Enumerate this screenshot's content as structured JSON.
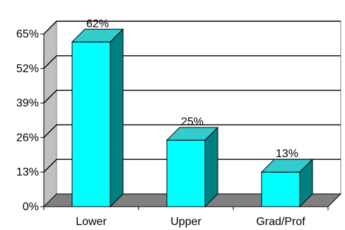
{
  "chart_data": {
    "type": "bar",
    "title": "",
    "xlabel": "",
    "ylabel": "",
    "categories": [
      "Lower",
      "Upper",
      "Grad/Prof"
    ],
    "values": [
      62,
      25,
      13
    ],
    "data_labels": [
      "62%",
      "25%",
      "13%"
    ],
    "y_ticks": [
      0,
      13,
      26,
      39,
      52,
      65
    ],
    "y_tick_labels": [
      "0%",
      "13%",
      "26%",
      "39%",
      "52%",
      "65%"
    ],
    "ylim": [
      0,
      65
    ],
    "grid": true,
    "three_d": true,
    "legend": "none"
  },
  "colors": {
    "bar_front": "#00FFFF",
    "bar_top": "#33CCCC",
    "bar_side": "#008080",
    "floor": "#808080",
    "back_wall": "#ffffff",
    "side_wall": "#c0c0c0",
    "gridline": "#000000"
  }
}
